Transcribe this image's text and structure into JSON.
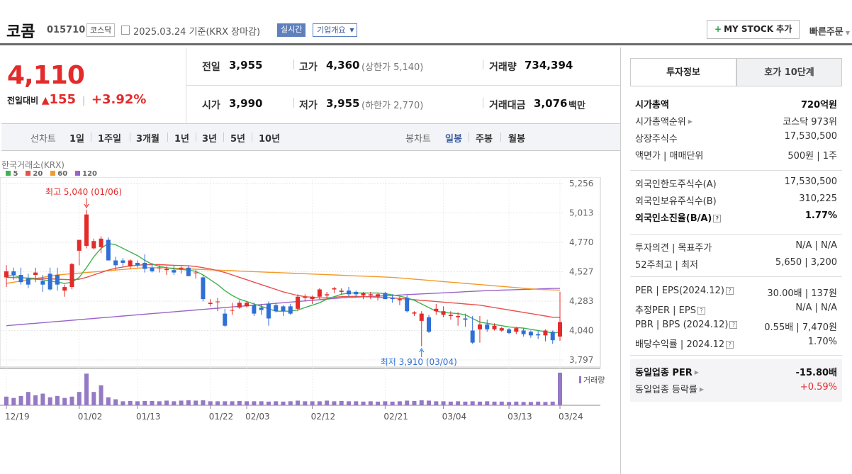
{
  "header": {
    "stock_name": "코콤",
    "stock_code": "015710",
    "market": "코스닥",
    "date_text": "2025.03.24 기준(KRX 장마감)",
    "realtime_label": "실시간",
    "company_overview_label": "기업개요",
    "my_stock_label": "MY STOCK 추가",
    "quick_order_label": "빠른주문"
  },
  "price": {
    "current": "4,110",
    "change_label": "전일대비",
    "change": "155",
    "change_pct": "+3.92%"
  },
  "quote": {
    "prev_close_label": "전일",
    "prev_close": "3,955",
    "high_label": "고가",
    "high": "4,360",
    "upper_limit_label": "(상한가 5,140)",
    "volume_label": "거래량",
    "volume": "734,394",
    "open_label": "시가",
    "open": "3,990",
    "low_label": "저가",
    "low": "3,955",
    "lower_limit_label": "(하한가 2,770)",
    "amount_label": "거래대금",
    "amount": "3,076",
    "amount_unit": "백만"
  },
  "period_tabs": {
    "line_label": "선차트",
    "line": [
      "1일",
      "1주일",
      "3개월",
      "1년",
      "3년",
      "5년",
      "10년"
    ],
    "candle_label": "봉차트",
    "candle": [
      "일봉",
      "주봉",
      "월봉"
    ],
    "selected_candle": "일봉"
  },
  "chart_data": {
    "type": "candlestick",
    "source_label": "한국거래소(KRX)",
    "legend": [
      {
        "name": "5",
        "color": "#3fb34f"
      },
      {
        "name": "20",
        "color": "#e8514b"
      },
      {
        "name": "60",
        "color": "#f39a2b"
      },
      {
        "name": "120",
        "color": "#9a63c9"
      }
    ],
    "y_ticks": [
      "5,256",
      "5,013",
      "4,770",
      "4,527",
      "4,283",
      "4,040",
      "3,797"
    ],
    "ylim": [
      3797,
      5256
    ],
    "x_ticks": [
      "12/19",
      "01/02",
      "01/13",
      "01/22",
      "02/03",
      "02/12",
      "02/21",
      "03/04",
      "03/13",
      "03/24"
    ],
    "high_annotation": "최고 5,040 (01/06)",
    "low_annotation": "최저 3,910 (03/04)",
    "volume_label": "거래량",
    "candles": [
      {
        "o": 4480,
        "h": 4580,
        "l": 4400,
        "c": 4530
      },
      {
        "o": 4530,
        "h": 4560,
        "l": 4460,
        "c": 4500
      },
      {
        "o": 4500,
        "h": 4560,
        "l": 4420,
        "c": 4440
      },
      {
        "o": 4470,
        "h": 4510,
        "l": 4390,
        "c": 4420
      },
      {
        "o": 4500,
        "h": 4560,
        "l": 4440,
        "c": 4520
      },
      {
        "o": 4450,
        "h": 4500,
        "l": 4360,
        "c": 4420
      },
      {
        "o": 4510,
        "h": 4560,
        "l": 4370,
        "c": 4380
      },
      {
        "o": 4500,
        "h": 4560,
        "l": 4370,
        "c": 4420
      },
      {
        "o": 4370,
        "h": 4420,
        "l": 4320,
        "c": 4400
      },
      {
        "o": 4400,
        "h": 4600,
        "l": 4380,
        "c": 4590
      },
      {
        "o": 4700,
        "h": 4790,
        "l": 4580,
        "c": 4790
      },
      {
        "o": 4740,
        "h": 5040,
        "l": 4720,
        "c": 5000
      },
      {
        "o": 4720,
        "h": 4800,
        "l": 4710,
        "c": 4780
      },
      {
        "o": 4730,
        "h": 4820,
        "l": 4680,
        "c": 4800
      },
      {
        "o": 4790,
        "h": 4810,
        "l": 4620,
        "c": 4620
      },
      {
        "o": 4620,
        "h": 4650,
        "l": 4540,
        "c": 4580
      },
      {
        "o": 4620,
        "h": 4640,
        "l": 4570,
        "c": 4600
      },
      {
        "o": 4570,
        "h": 4630,
        "l": 4550,
        "c": 4620
      },
      {
        "o": 4600,
        "h": 4620,
        "l": 4560,
        "c": 4580
      },
      {
        "o": 4600,
        "h": 4670,
        "l": 4520,
        "c": 4550
      },
      {
        "o": 4560,
        "h": 4600,
        "l": 4520,
        "c": 4530
      },
      {
        "o": 4560,
        "h": 4580,
        "l": 4520,
        "c": 4560
      },
      {
        "o": 4540,
        "h": 4570,
        "l": 4500,
        "c": 4550
      },
      {
        "o": 4540,
        "h": 4580,
        "l": 4500,
        "c": 4520
      },
      {
        "o": 4550,
        "h": 4570,
        "l": 4510,
        "c": 4560
      },
      {
        "o": 4560,
        "h": 4580,
        "l": 4490,
        "c": 4490
      },
      {
        "o": 4520,
        "h": 4540,
        "l": 4470,
        "c": 4520
      },
      {
        "o": 4480,
        "h": 4500,
        "l": 4280,
        "c": 4300
      },
      {
        "o": 4260,
        "h": 4300,
        "l": 4240,
        "c": 4270
      },
      {
        "o": 4280,
        "h": 4310,
        "l": 4200,
        "c": 4280
      },
      {
        "o": 4180,
        "h": 4220,
        "l": 4070,
        "c": 4080
      },
      {
        "o": 4210,
        "h": 4270,
        "l": 4170,
        "c": 4210
      },
      {
        "o": 4230,
        "h": 4290,
        "l": 4220,
        "c": 4270
      },
      {
        "o": 4240,
        "h": 4280,
        "l": 4230,
        "c": 4270
      },
      {
        "o": 4250,
        "h": 4270,
        "l": 4160,
        "c": 4180
      },
      {
        "o": 4230,
        "h": 4260,
        "l": 4170,
        "c": 4210
      },
      {
        "o": 4260,
        "h": 4280,
        "l": 4080,
        "c": 4140
      },
      {
        "o": 4250,
        "h": 4270,
        "l": 4190,
        "c": 4200
      },
      {
        "o": 4240,
        "h": 4250,
        "l": 4160,
        "c": 4200
      },
      {
        "o": 4240,
        "h": 4260,
        "l": 4170,
        "c": 4180
      },
      {
        "o": 4220,
        "h": 4340,
        "l": 4200,
        "c": 4320
      },
      {
        "o": 4310,
        "h": 4340,
        "l": 4280,
        "c": 4320
      },
      {
        "o": 4300,
        "h": 4330,
        "l": 4260,
        "c": 4320
      },
      {
        "o": 4320,
        "h": 4390,
        "l": 4300,
        "c": 4380
      },
      {
        "o": 4330,
        "h": 4360,
        "l": 4300,
        "c": 4340
      },
      {
        "o": 4380,
        "h": 4400,
        "l": 4350,
        "c": 4390
      },
      {
        "o": 4360,
        "h": 4390,
        "l": 4340,
        "c": 4370
      },
      {
        "o": 4370,
        "h": 4400,
        "l": 4320,
        "c": 4340
      },
      {
        "o": 4360,
        "h": 4370,
        "l": 4310,
        "c": 4340
      },
      {
        "o": 4330,
        "h": 4360,
        "l": 4300,
        "c": 4350
      },
      {
        "o": 4330,
        "h": 4360,
        "l": 4300,
        "c": 4340
      },
      {
        "o": 4320,
        "h": 4350,
        "l": 4290,
        "c": 4340
      },
      {
        "o": 4350,
        "h": 4360,
        "l": 4300,
        "c": 4300
      },
      {
        "o": 4310,
        "h": 4340,
        "l": 4270,
        "c": 4300
      },
      {
        "o": 4290,
        "h": 4320,
        "l": 4250,
        "c": 4300
      },
      {
        "o": 4310,
        "h": 4330,
        "l": 4190,
        "c": 4200
      },
      {
        "o": 4180,
        "h": 4200,
        "l": 4160,
        "c": 4190
      },
      {
        "o": 4120,
        "h": 4200,
        "l": 3910,
        "c": 4180
      },
      {
        "o": 4150,
        "h": 4170,
        "l": 4020,
        "c": 4030
      },
      {
        "o": 4200,
        "h": 4260,
        "l": 4170,
        "c": 4220
      },
      {
        "o": 4170,
        "h": 4240,
        "l": 4150,
        "c": 4200
      },
      {
        "o": 4160,
        "h": 4200,
        "l": 4130,
        "c": 4170
      },
      {
        "o": 4150,
        "h": 4190,
        "l": 4080,
        "c": 4160
      },
      {
        "o": 4140,
        "h": 4180,
        "l": 4070,
        "c": 4130
      },
      {
        "o": 4040,
        "h": 4160,
        "l": 3930,
        "c": 3940
      },
      {
        "o": 4050,
        "h": 4160,
        "l": 3940,
        "c": 4090
      },
      {
        "o": 4090,
        "h": 4130,
        "l": 4030,
        "c": 4050
      },
      {
        "o": 4050,
        "h": 4100,
        "l": 4040,
        "c": 4080
      },
      {
        "o": 4040,
        "h": 4070,
        "l": 4030,
        "c": 4060
      },
      {
        "o": 4050,
        "h": 4060,
        "l": 4010,
        "c": 4020
      },
      {
        "o": 4030,
        "h": 4070,
        "l": 4010,
        "c": 4060
      },
      {
        "o": 4040,
        "h": 4060,
        "l": 3990,
        "c": 4010
      },
      {
        "o": 4030,
        "h": 4040,
        "l": 3980,
        "c": 4000
      },
      {
        "o": 4010,
        "h": 4040,
        "l": 3970,
        "c": 4000
      },
      {
        "o": 4000,
        "h": 4050,
        "l": 3950,
        "c": 4040
      },
      {
        "o": 4030,
        "h": 4040,
        "l": 3930,
        "c": 3960
      },
      {
        "o": 3990,
        "h": 4360,
        "l": 3955,
        "c": 4110
      }
    ],
    "volumes": [
      0.26,
      0.22,
      0.28,
      0.4,
      0.3,
      0.35,
      0.24,
      0.28,
      0.22,
      0.26,
      0.4,
      0.95,
      0.4,
      0.6,
      0.24,
      0.18,
      0.12,
      0.13,
      0.12,
      0.13,
      0.13,
      0.12,
      0.14,
      0.12,
      0.14,
      0.15,
      0.14,
      0.15,
      0.12,
      0.12,
      0.12,
      0.12,
      0.13,
      0.12,
      0.12,
      0.12,
      0.11,
      0.12,
      0.11,
      0.12,
      0.14,
      0.12,
      0.12,
      0.12,
      0.14,
      0.12,
      0.13,
      0.12,
      0.12,
      0.11,
      0.12,
      0.11,
      0.12,
      0.11,
      0.12,
      0.14,
      0.13,
      0.15,
      0.14,
      0.12,
      0.12,
      0.11,
      0.12,
      0.11,
      0.12,
      0.11,
      0.12,
      0.11,
      0.11,
      0.1,
      0.11,
      0.1,
      0.1,
      0.11,
      0.1,
      0.11,
      0.98
    ],
    "ma5": [
      4490,
      4495,
      4480,
      4470,
      4465,
      4460,
      4450,
      4440,
      4430,
      4440,
      4480,
      4560,
      4650,
      4720,
      4760,
      4750,
      4720,
      4690,
      4660,
      4620,
      4590,
      4570,
      4560,
      4550,
      4545,
      4540,
      4530,
      4500,
      4460,
      4420,
      4370,
      4330,
      4300,
      4280,
      4260,
      4240,
      4220,
      4200,
      4200,
      4200,
      4210,
      4230,
      4250,
      4270,
      4300,
      4320,
      4340,
      4350,
      4350,
      4350,
      4350,
      4350,
      4345,
      4335,
      4325,
      4310,
      4290,
      4260,
      4230,
      4200,
      4190,
      4185,
      4180,
      4170,
      4140,
      4110,
      4100,
      4090,
      4080,
      4070,
      4065,
      4060,
      4050,
      4040,
      4030,
      4020,
      4025
    ],
    "ma20": [
      4480,
      4478,
      4476,
      4474,
      4472,
      4470,
      4468,
      4465,
      4462,
      4460,
      4465,
      4480,
      4500,
      4520,
      4540,
      4555,
      4565,
      4575,
      4580,
      4585,
      4585,
      4585,
      4582,
      4580,
      4578,
      4575,
      4570,
      4560,
      4550,
      4535,
      4520,
      4500,
      4480,
      4460,
      4440,
      4420,
      4400,
      4380,
      4360,
      4345,
      4330,
      4320,
      4315,
      4310,
      4310,
      4315,
      4320,
      4322,
      4323,
      4320,
      4318,
      4315,
      4312,
      4310,
      4305,
      4300,
      4295,
      4290,
      4285,
      4280,
      4275,
      4270,
      4265,
      4260,
      4255,
      4250,
      4240,
      4230,
      4220,
      4210,
      4200,
      4190,
      4180,
      4170,
      4160,
      4150,
      4150
    ],
    "ma60": [
      4430,
      4440,
      4450,
      4460,
      4470,
      4480,
      4490,
      4500,
      4505,
      4510,
      4515,
      4520,
      4525,
      4530,
      4535,
      4540,
      4545,
      4550,
      4555,
      4560,
      4560,
      4560,
      4558,
      4555,
      4553,
      4550,
      4547,
      4545,
      4542,
      4540,
      4537,
      4535,
      4532,
      4530,
      4527,
      4525,
      4522,
      4520,
      4517,
      4515,
      4512,
      4510,
      4507,
      4505,
      4502,
      4500,
      4497,
      4495,
      4492,
      4490,
      4487,
      4485,
      4482,
      4480,
      4475,
      4470,
      4465,
      4460,
      4455,
      4450,
      4445,
      4440,
      4435,
      4430,
      4425,
      4420,
      4415,
      4410,
      4405,
      4400,
      4395,
      4390,
      4385,
      4380,
      4378,
      4376,
      4375
    ],
    "ma120": [
      4080,
      4085,
      4090,
      4095,
      4100,
      4105,
      4110,
      4115,
      4120,
      4125,
      4130,
      4135,
      4140,
      4145,
      4150,
      4155,
      4160,
      4165,
      4170,
      4175,
      4180,
      4185,
      4190,
      4195,
      4200,
      4205,
      4210,
      4215,
      4220,
      4225,
      4230,
      4235,
      4240,
      4245,
      4250,
      4255,
      4260,
      4265,
      4270,
      4275,
      4280,
      4285,
      4290,
      4295,
      4300,
      4305,
      4310,
      4313,
      4316,
      4319,
      4322,
      4325,
      4328,
      4331,
      4334,
      4337,
      4340,
      4343,
      4346,
      4349,
      4352,
      4355,
      4358,
      4361,
      4364,
      4367,
      4370,
      4372,
      4374,
      4376,
      4378,
      4380,
      4382,
      4384,
      4386,
      4388,
      4388
    ]
  },
  "info_panel": {
    "tabs": [
      "투자정보",
      "호가 10단계"
    ],
    "rows": [
      {
        "k": "시가총액",
        "v": "720억원",
        "bold": true
      },
      {
        "k": "시가총액순위",
        "v": "코스닥 973위",
        "arrow": true
      },
      {
        "k": "상장주식수",
        "v": "17,530,500"
      },
      {
        "k": "액면가 | 매매단위",
        "v": "500원 | 1주"
      }
    ],
    "rows2": [
      {
        "k": "외국인한도주식수(A)",
        "v": "17,530,500"
      },
      {
        "k": "외국인보유주식수(B)",
        "v": "310,225"
      },
      {
        "k": "외국인소진율(B/A)",
        "v": "1.77%",
        "bold": true,
        "q": true
      }
    ],
    "rows3": [
      {
        "k": "투자의견 | 목표주가",
        "v": "N/A | N/A"
      },
      {
        "k": "52주최고 | 최저",
        "v": "5,650 | 3,200"
      }
    ],
    "rows4": [
      {
        "k": "PER | EPS(2024.12)",
        "v": "30.00배 | 137원",
        "q": true
      },
      {
        "k": "추정PER | EPS",
        "v": "N/A | N/A",
        "q": true
      },
      {
        "k": "PBR | BPS (2024.12)",
        "v": "0.55배 | 7,470원",
        "q": true
      },
      {
        "k": "배당수익률 | 2024.12",
        "v": "1.70%",
        "q": true
      }
    ],
    "rows5": [
      {
        "k": "동일업종 PER",
        "v": "-15.80배",
        "bold": true,
        "arrow": true
      },
      {
        "k": "동일업종 등락률",
        "v": "+0.59%",
        "red": true,
        "arrow": true
      }
    ]
  },
  "colors": {
    "up": "#e32b2b",
    "down": "#2f6fd6",
    "accent": "#4b6db0"
  }
}
